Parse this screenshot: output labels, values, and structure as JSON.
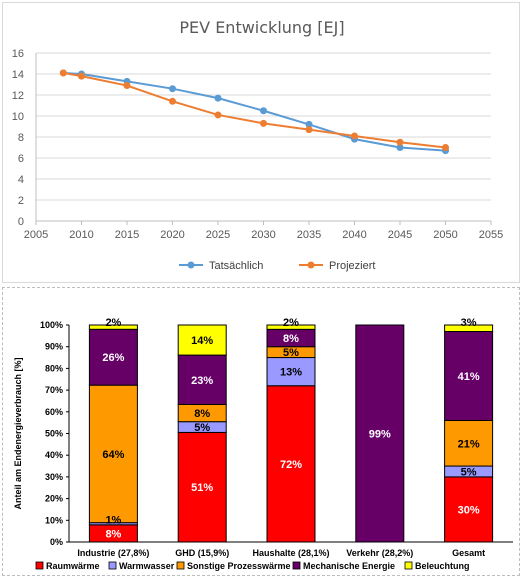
{
  "chart_data": [
    {
      "type": "line",
      "title": "PEV Entwicklung [EJ]",
      "xlim": [
        2005,
        2055
      ],
      "ylim": [
        0,
        16
      ],
      "xticks": [
        2005,
        2010,
        2015,
        2020,
        2025,
        2030,
        2035,
        2040,
        2045,
        2050,
        2055
      ],
      "yticks": [
        0,
        2,
        4,
        6,
        8,
        10,
        12,
        14,
        16
      ],
      "grid": true,
      "legend": "bottom",
      "series": [
        {
          "name": "Tatsächlich",
          "color": "#5B9BD5",
          "x": [
            2008,
            2010,
            2015,
            2020,
            2025,
            2030,
            2035,
            2040,
            2045,
            2050
          ],
          "y": [
            14.1,
            14.0,
            13.3,
            12.6,
            11.7,
            10.5,
            9.2,
            7.8,
            7.0,
            6.7
          ]
        },
        {
          "name": "Projeziert",
          "color": "#ED7D31",
          "x": [
            2008,
            2010,
            2015,
            2020,
            2025,
            2030,
            2035,
            2040,
            2045,
            2050
          ],
          "y": [
            14.1,
            13.8,
            12.9,
            11.4,
            10.1,
            9.3,
            8.7,
            8.1,
            7.5,
            7.0
          ]
        }
      ]
    },
    {
      "type": "bar",
      "stacked": true,
      "ylabel": "Anteil am Endenergieverbrauch [%]",
      "ylim": [
        0,
        100
      ],
      "yticks": [
        "0%",
        "10%",
        "20%",
        "30%",
        "40%",
        "50%",
        "60%",
        "70%",
        "80%",
        "90%",
        "100%"
      ],
      "legend": "bottom",
      "categories": [
        "Industrie (27,8%)",
        "GHD (15,9%)",
        "Haushalte (28,1%)",
        "Verkehr (28,2%)",
        "Gesamt"
      ],
      "series": [
        {
          "name": "Raumwärme",
          "color": "#FF0000",
          "label_color": "#ffffff",
          "values": [
            8,
            51,
            72,
            0,
            30
          ],
          "labels": [
            "8%",
            "51%",
            "72%",
            "",
            "30%"
          ]
        },
        {
          "name": "Warmwasser",
          "color": "#9999FF",
          "label_color": "#000000",
          "values": [
            1,
            5,
            13,
            0,
            5
          ],
          "labels": [
            "1%",
            "5%",
            "13%",
            "",
            "5%"
          ]
        },
        {
          "name": "Sonstige Prozesswärme",
          "color": "#FF9900",
          "label_color": "#000000",
          "values": [
            64,
            8,
            5,
            0,
            21
          ],
          "labels": [
            "64%",
            "8%",
            "5%",
            "",
            "21%"
          ]
        },
        {
          "name": "Mechanische Energie",
          "color": "#660066",
          "label_color": "#ffffff",
          "values": [
            26,
            23,
            8,
            99,
            41
          ],
          "labels": [
            "26%",
            "23%",
            "8%",
            "99%",
            "41%"
          ]
        },
        {
          "name": "Beleuchtung",
          "color": "#FFFF00",
          "label_color": "#000000",
          "values": [
            2,
            14,
            2,
            0,
            3
          ],
          "labels": [
            "2%",
            "14%",
            "2%",
            "",
            "3%"
          ]
        }
      ]
    }
  ]
}
